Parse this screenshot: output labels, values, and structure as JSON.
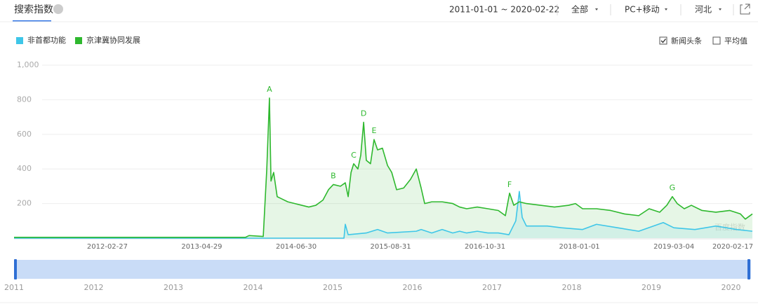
{
  "header": {
    "title": "搜索指数",
    "date_range": "2011-01-01 ~ 2020-02-22",
    "filters": [
      "全部",
      "PC+移动",
      "河北"
    ]
  },
  "options": [
    {
      "label": "新闻头条",
      "checked": true
    },
    {
      "label": "平均值",
      "checked": false
    }
  ],
  "chart_data": {
    "type": "line",
    "area": true,
    "grid": true,
    "xlim": [
      "2011-01-01",
      "2020-02-22"
    ],
    "xticks": [
      "2012-02-27",
      "2013-04-29",
      "2014-06-30",
      "2015-08-31",
      "2016-10-31",
      "2018-01-01",
      "2019-03-04",
      "2020-02-17"
    ],
    "ylim": [
      0,
      1000
    ],
    "yticks": [
      {
        "value": 1000,
        "label": "1,000"
      },
      800,
      600,
      400,
      200
    ],
    "watermark": "百度指数",
    "series": [
      {
        "name": "非首都功能",
        "color": "#3ec6e8",
        "x": [
          "2011-01-01",
          "2015-02-01",
          "2015-02-07",
          "2015-02-20",
          "2015-05-13",
          "2015-07-03",
          "2015-08-17",
          "2015-12-25",
          "2016-01-16",
          "2016-03-04",
          "2016-04-20",
          "2016-06-07",
          "2016-07-08",
          "2016-08-09",
          "2016-09-26",
          "2016-11-13",
          "2016-12-30",
          "2017-02-16",
          "2017-03-19",
          "2017-04-04",
          "2017-04-17",
          "2017-05-06",
          "2017-08-09",
          "2017-10-12",
          "2018-01-15",
          "2018-03-19",
          "2018-06-23",
          "2018-09-26",
          "2019-01-15",
          "2019-03-04",
          "2019-06-07",
          "2019-09-10",
          "2019-12-14",
          "2020-02-22"
        ],
        "values": [
          0,
          0,
          80,
          20,
          30,
          50,
          30,
          40,
          50,
          30,
          50,
          30,
          40,
          30,
          40,
          30,
          30,
          20,
          100,
          270,
          120,
          70,
          70,
          60,
          50,
          80,
          60,
          40,
          90,
          60,
          50,
          70,
          50,
          40
        ]
      },
      {
        "name": "京津冀协同发展",
        "color": "#2eb82e",
        "x": [
          "2011-01-01",
          "2013-11-13",
          "2013-11-29",
          "2014-02-01",
          "2014-02-17",
          "2014-03-01",
          "2014-03-08",
          "2014-03-20",
          "2014-04-05",
          "2014-04-21",
          "2014-05-23",
          "2014-06-24",
          "2014-07-25",
          "2014-08-26",
          "2014-09-27",
          "2014-10-29",
          "2014-11-23",
          "2014-12-15",
          "2015-01-16",
          "2015-02-07",
          "2015-02-20",
          "2015-03-05",
          "2015-03-17",
          "2015-04-05",
          "2015-04-18",
          "2015-05-01",
          "2015-05-13",
          "2015-06-01",
          "2015-06-17",
          "2015-07-03",
          "2015-07-25",
          "2015-08-17",
          "2015-09-05",
          "2015-09-27",
          "2015-10-29",
          "2015-11-29",
          "2015-12-25",
          "2016-01-16",
          "2016-02-01",
          "2016-03-04",
          "2016-04-20",
          "2016-06-07",
          "2016-07-08",
          "2016-08-09",
          "2016-09-26",
          "2016-11-13",
          "2016-12-30",
          "2017-01-31",
          "2017-02-19",
          "2017-03-10",
          "2017-04-04",
          "2017-05-06",
          "2017-07-09",
          "2017-09-10",
          "2017-11-13",
          "2017-12-14",
          "2018-01-15",
          "2018-03-19",
          "2018-05-22",
          "2018-07-24",
          "2018-09-26",
          "2018-11-12",
          "2018-12-30",
          "2019-01-31",
          "2019-02-25",
          "2019-03-19",
          "2019-04-20",
          "2019-05-22",
          "2019-07-09",
          "2019-09-10",
          "2019-11-12",
          "2019-12-30",
          "2020-01-21",
          "2020-02-22"
        ],
        "values": [
          5,
          5,
          15,
          10,
          400,
          810,
          330,
          380,
          240,
          230,
          210,
          200,
          190,
          180,
          190,
          220,
          280,
          310,
          300,
          320,
          240,
          380,
          430,
          400,
          480,
          670,
          450,
          430,
          570,
          510,
          520,
          420,
          380,
          280,
          290,
          340,
          400,
          290,
          200,
          210,
          210,
          200,
          180,
          170,
          180,
          170,
          160,
          130,
          260,
          190,
          210,
          200,
          190,
          180,
          190,
          200,
          170,
          170,
          160,
          140,
          130,
          170,
          150,
          190,
          240,
          200,
          170,
          190,
          160,
          150,
          160,
          140,
          110,
          140
        ]
      }
    ],
    "annotations": [
      {
        "label": "A",
        "x": "2014-03-01",
        "y": 810
      },
      {
        "label": "B",
        "x": "2014-12-15",
        "y": 310
      },
      {
        "label": "C",
        "x": "2015-03-17",
        "y": 430
      },
      {
        "label": "D",
        "x": "2015-05-01",
        "y": 670
      },
      {
        "label": "E",
        "x": "2015-06-17",
        "y": 570
      },
      {
        "label": "F",
        "x": "2017-02-19",
        "y": 260
      },
      {
        "label": "G",
        "x": "2019-02-25",
        "y": 240
      }
    ]
  },
  "navigator": {
    "years": [
      2011,
      2012,
      2013,
      2014,
      2015,
      2016,
      2017,
      2018,
      2019,
      2020
    ]
  }
}
